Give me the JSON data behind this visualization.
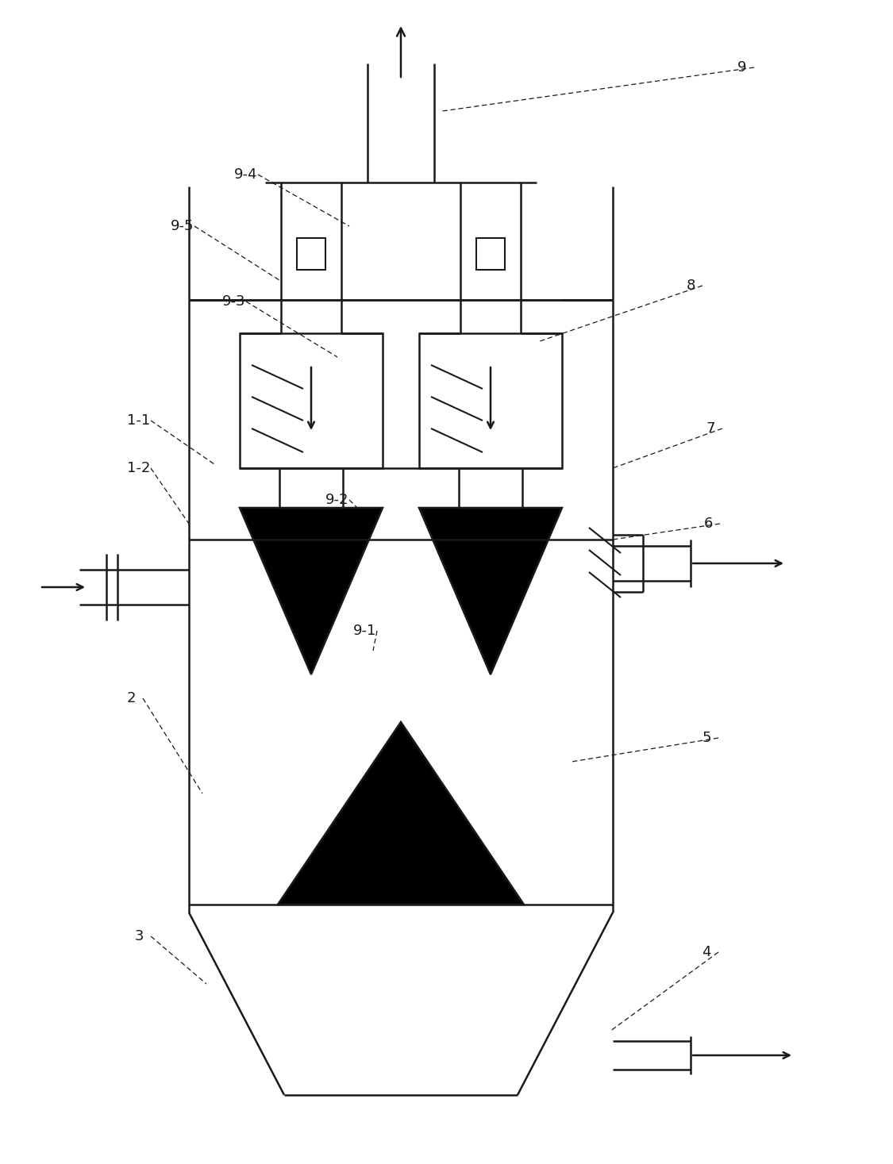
{
  "bg_color": "#ffffff",
  "line_color": "#1a1a1a",
  "fill_color": "#000000",
  "fig_width": 11.25,
  "fig_height": 14.67,
  "dpi": 100,
  "label_fontsize": 13,
  "lw": 1.8
}
